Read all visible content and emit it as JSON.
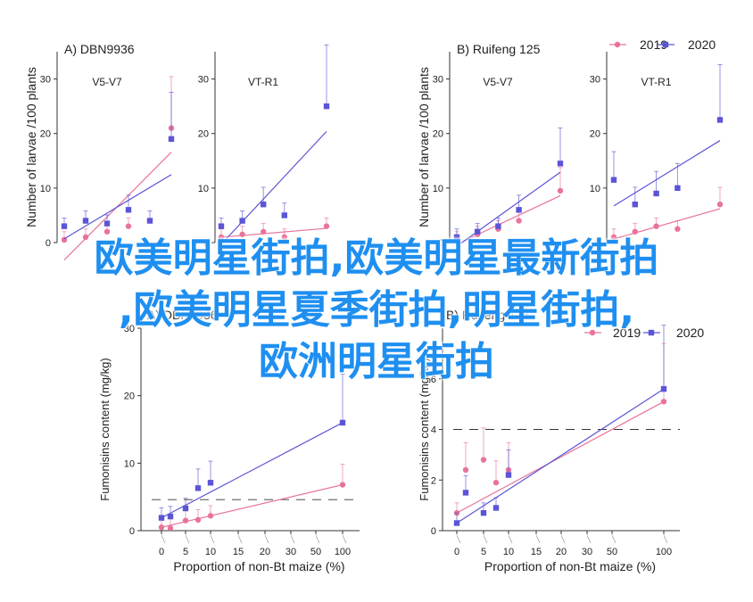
{
  "colors": {
    "2019": "#e8739a",
    "2020": "#5b55d6",
    "axis": "#333333",
    "threshold": "#333333"
  },
  "overlay_lines": [
    "欧美明星街拍,欧美明星最新街拍",
    ",欧美明星夏季街拍,明星街拍,",
    "欧洲明星街拍"
  ],
  "legend_entries": [
    "2019",
    "2020"
  ],
  "chart_data": [
    {
      "type": "scatter",
      "panel": "A",
      "title": "DBN9936",
      "subplots": [
        {
          "subtitle": "V5-V7",
          "ylabel": "Number of larvae /100 plants",
          "ylim": [
            0,
            35
          ],
          "yticks": [
            0,
            10,
            20,
            30
          ],
          "series": [
            {
              "name": "2019",
              "x": [
                0,
                1,
                2,
                3,
                5
              ],
              "y": [
                0.5,
                1,
                2,
                3,
                21
              ]
            },
            {
              "name": "2020",
              "x": [
                0,
                1,
                2,
                3,
                4,
                5
              ],
              "y": [
                3,
                4,
                3.5,
                6,
                4,
                19
              ]
            }
          ]
        },
        {
          "subtitle": "VT-R1",
          "ylim": [
            0,
            35
          ],
          "yticks": [
            0,
            10,
            20,
            30
          ],
          "series": [
            {
              "name": "2019",
              "x": [
                0,
                1,
                2,
                3,
                5
              ],
              "y": [
                1,
                1.5,
                2,
                1,
                3
              ]
            },
            {
              "name": "2020",
              "x": [
                0,
                1,
                2,
                3,
                5
              ],
              "y": [
                3,
                4,
                7,
                5,
                25
              ]
            }
          ]
        }
      ]
    },
    {
      "type": "scatter",
      "panel": "B",
      "title": "Ruifeng 125",
      "legend": "top-right",
      "subplots": [
        {
          "subtitle": "V5-V7",
          "ylabel": "Number of larvae /100 plants",
          "ylim": [
            0,
            35
          ],
          "yticks": [
            0,
            10,
            20,
            30
          ],
          "series": [
            {
              "name": "2019",
              "x": [
                0,
                1,
                2,
                3,
                5
              ],
              "y": [
                0.5,
                1.5,
                2.5,
                4,
                9.5
              ]
            },
            {
              "name": "2020",
              "x": [
                0,
                1,
                2,
                3,
                5
              ],
              "y": [
                1,
                2,
                3,
                6,
                14.5
              ]
            }
          ]
        },
        {
          "subtitle": "VT-R1",
          "ylim": [
            0,
            35
          ],
          "yticks": [
            0,
            10,
            20,
            30
          ],
          "series": [
            {
              "name": "2019",
              "x": [
                0,
                1,
                2,
                3,
                5
              ],
              "y": [
                1,
                2,
                3,
                2.5,
                7
              ]
            },
            {
              "name": "2020",
              "x": [
                0,
                1,
                2,
                3,
                5
              ],
              "y": [
                11.5,
                7,
                9,
                10,
                22.5
              ]
            }
          ]
        }
      ]
    },
    {
      "type": "scatter",
      "panel": "A",
      "title": "DBN9936",
      "xlabel": "Proportion of non-Bt maize (%)",
      "ylabel": "Fumonisins content (mg/kg)",
      "ylim": [
        0,
        30
      ],
      "yticks": [
        0,
        10,
        20,
        30
      ],
      "xticks": [
        0,
        5,
        10,
        15,
        20,
        30,
        50,
        100
      ],
      "threshold": 4.6,
      "series": [
        {
          "name": "2019",
          "x": [
            0,
            2,
            5,
            8,
            10,
            100
          ],
          "y": [
            0.5,
            0.4,
            1.5,
            1.6,
            2.2,
            6.8
          ]
        },
        {
          "name": "2020",
          "x": [
            0,
            2,
            5,
            8,
            10,
            100
          ],
          "y": [
            1.9,
            2.1,
            3.3,
            6.3,
            7.1,
            16
          ]
        }
      ]
    },
    {
      "type": "scatter",
      "panel": "B",
      "title": "Ruifeng 125",
      "legend": "top-right",
      "xlabel": "Proportion of non-Bt maize (%)",
      "ylabel": "Fumonisins content (mg/kg)",
      "ylim": [
        0,
        8
      ],
      "yticks": [
        0,
        2,
        4,
        6
      ],
      "xticks": [
        0,
        5,
        10,
        15,
        20,
        30,
        50,
        100
      ],
      "threshold": 4,
      "series": [
        {
          "name": "2019",
          "x": [
            0,
            2,
            5,
            8,
            10,
            100
          ],
          "y": [
            0.7,
            2.4,
            2.8,
            1.9,
            2.4,
            5.1
          ]
        },
        {
          "name": "2020",
          "x": [
            0,
            2,
            5,
            8,
            10,
            100
          ],
          "y": [
            0.3,
            1.5,
            0.7,
            0.9,
            2.2,
            5.6
          ]
        }
      ]
    }
  ]
}
